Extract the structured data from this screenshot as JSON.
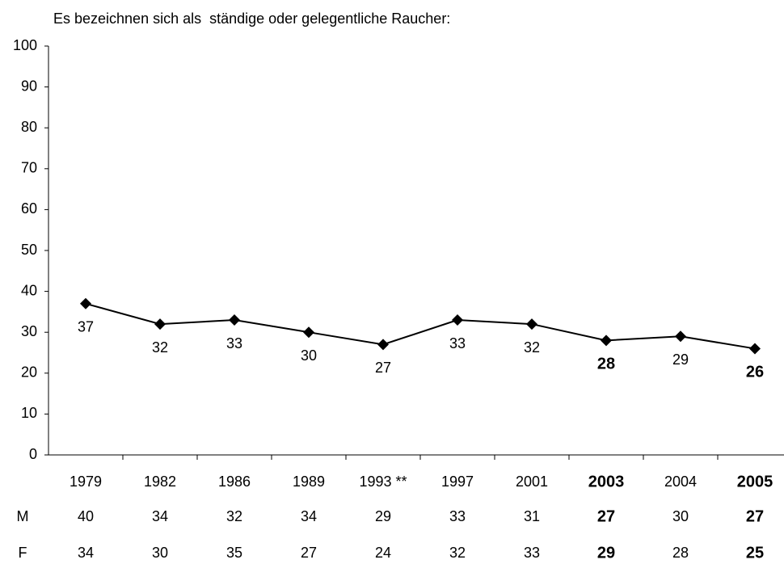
{
  "chart_data": {
    "type": "line",
    "title": "Es bezeichnen sich als  ständige oder gelegentliche Raucher:",
    "categories": [
      "1979",
      "1982",
      "1986",
      "1989",
      "1993 **",
      "1997",
      "2001",
      "2003",
      "2004",
      "2005"
    ],
    "series": [
      {
        "name": null,
        "color": "#000000",
        "values": [
          37,
          32,
          33,
          30,
          27,
          33,
          32,
          28,
          29,
          26
        ]
      }
    ],
    "ylim": [
      0,
      100
    ],
    "yticks": [
      0,
      10,
      20,
      30,
      40,
      50,
      60,
      70,
      80,
      90,
      100
    ],
    "grid": false,
    "bold_indices": [
      7,
      9
    ],
    "table": {
      "rows": [
        {
          "label": "M",
          "values": [
            40,
            34,
            32,
            34,
            29,
            33,
            31,
            27,
            30,
            27
          ]
        },
        {
          "label": "F",
          "values": [
            34,
            30,
            35,
            27,
            24,
            32,
            33,
            29,
            28,
            25
          ]
        }
      ]
    }
  }
}
